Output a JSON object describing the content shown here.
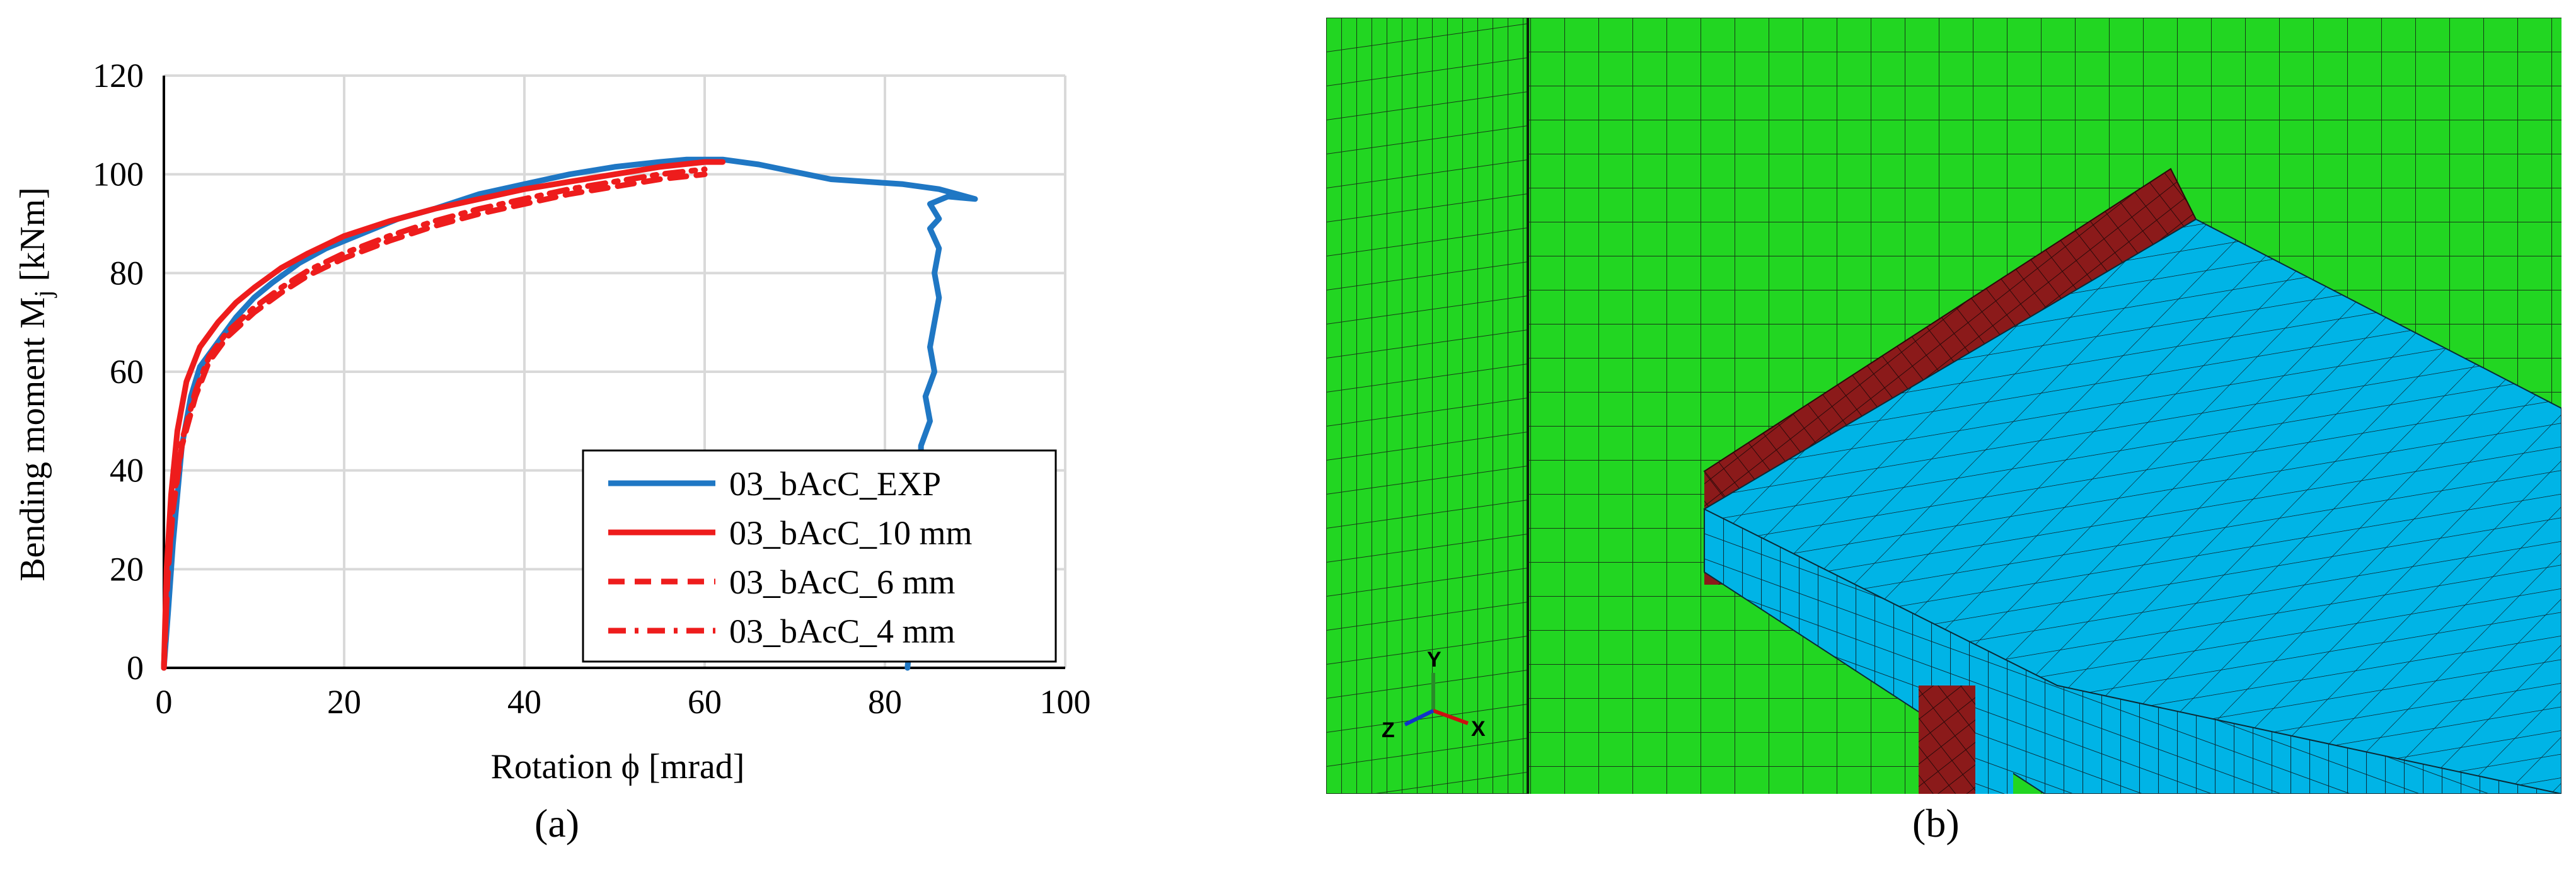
{
  "chart_data": {
    "type": "line",
    "xlabel": "Rotation ϕ [mrad]",
    "ylabel_main": "Bending moment M",
    "ylabel_sub": "j",
    "ylabel_unit": " [kNm]",
    "xlim": [
      0,
      100
    ],
    "ylim": [
      0,
      120
    ],
    "xticks": [
      0,
      20,
      40,
      60,
      80,
      100
    ],
    "yticks": [
      0,
      20,
      40,
      60,
      80,
      100,
      120
    ],
    "grid": true,
    "legend_position": "bottom-right",
    "series": [
      {
        "name": "03_bAcC_EXP",
        "color": "#1f77c4",
        "style": "solid",
        "points": [
          [
            0,
            0
          ],
          [
            0.5,
            12
          ],
          [
            1,
            25
          ],
          [
            1.5,
            35
          ],
          [
            2,
            45
          ],
          [
            3,
            55
          ],
          [
            4,
            61
          ],
          [
            6,
            66
          ],
          [
            8,
            71
          ],
          [
            10,
            75
          ],
          [
            12,
            78
          ],
          [
            15,
            82
          ],
          [
            18,
            85
          ],
          [
            22,
            88
          ],
          [
            26,
            91
          ],
          [
            30,
            93
          ],
          [
            35,
            96
          ],
          [
            40,
            98
          ],
          [
            45,
            100
          ],
          [
            50,
            101.5
          ],
          [
            55,
            102.5
          ],
          [
            58,
            103
          ],
          [
            62,
            103
          ],
          [
            66,
            102
          ],
          [
            70,
            100.5
          ],
          [
            74,
            99
          ],
          [
            78,
            98.5
          ],
          [
            82,
            98
          ],
          [
            86,
            97
          ],
          [
            90,
            95
          ],
          [
            87,
            95.5
          ],
          [
            85,
            94
          ],
          [
            86,
            91
          ],
          [
            85,
            89
          ],
          [
            86,
            85
          ],
          [
            85.5,
            80
          ],
          [
            86,
            75
          ],
          [
            85.5,
            70
          ],
          [
            85,
            65
          ],
          [
            85.5,
            60
          ],
          [
            84.5,
            55
          ],
          [
            85,
            50
          ],
          [
            84,
            45
          ],
          [
            84,
            40
          ],
          [
            83.5,
            30
          ],
          [
            83,
            20
          ],
          [
            83,
            10
          ],
          [
            82.5,
            0
          ]
        ]
      },
      {
        "name": "03_bAcC_10 mm",
        "color": "#ee1c1c",
        "style": "solid",
        "points": [
          [
            0,
            0
          ],
          [
            0.3,
            20
          ],
          [
            0.8,
            35
          ],
          [
            1.5,
            48
          ],
          [
            2.5,
            58
          ],
          [
            4,
            65
          ],
          [
            6,
            70
          ],
          [
            8,
            74
          ],
          [
            10,
            77
          ],
          [
            13,
            81
          ],
          [
            16,
            84
          ],
          [
            20,
            87.5
          ],
          [
            25,
            90.5
          ],
          [
            30,
            93
          ],
          [
            35,
            95
          ],
          [
            40,
            97
          ],
          [
            45,
            98.5
          ],
          [
            50,
            100
          ],
          [
            55,
            101.5
          ],
          [
            60,
            102.5
          ],
          [
            62,
            102.5
          ]
        ]
      },
      {
        "name": "03_bAcC_6 mm",
        "color": "#ee1c1c",
        "style": "dashed",
        "points": [
          [
            0,
            0
          ],
          [
            0.4,
            18
          ],
          [
            1,
            32
          ],
          [
            2,
            45
          ],
          [
            3.5,
            55
          ],
          [
            5,
            62
          ],
          [
            7,
            67
          ],
          [
            10,
            72
          ],
          [
            13,
            76
          ],
          [
            16,
            79.5
          ],
          [
            20,
            83
          ],
          [
            25,
            86.5
          ],
          [
            30,
            89.5
          ],
          [
            35,
            92
          ],
          [
            40,
            94
          ],
          [
            45,
            96
          ],
          [
            50,
            97.5
          ],
          [
            55,
            99
          ],
          [
            60,
            100
          ]
        ]
      },
      {
        "name": "03_bAcC_4 mm",
        "color": "#ee1c1c",
        "style": "dashdot",
        "points": [
          [
            0,
            0
          ],
          [
            0.4,
            18
          ],
          [
            1,
            33
          ],
          [
            2,
            46
          ],
          [
            3.5,
            56
          ],
          [
            5,
            63
          ],
          [
            7,
            68
          ],
          [
            10,
            73
          ],
          [
            13,
            77
          ],
          [
            16,
            80.5
          ],
          [
            20,
            84
          ],
          [
            25,
            87.5
          ],
          [
            30,
            90.5
          ],
          [
            35,
            93
          ],
          [
            40,
            95
          ],
          [
            45,
            97
          ],
          [
            50,
            98.5
          ],
          [
            55,
            100
          ],
          [
            60,
            101
          ]
        ]
      }
    ]
  },
  "captions": {
    "a": "(a)",
    "b": "(b)"
  },
  "fem": {
    "axis_y": "Y",
    "axis_z": "Z",
    "axis_x": "X",
    "colors": {
      "column": "#22d622",
      "flange": "#00b4e6",
      "weld": "#8b1a1a",
      "mesh": "#1a1a1a"
    }
  }
}
